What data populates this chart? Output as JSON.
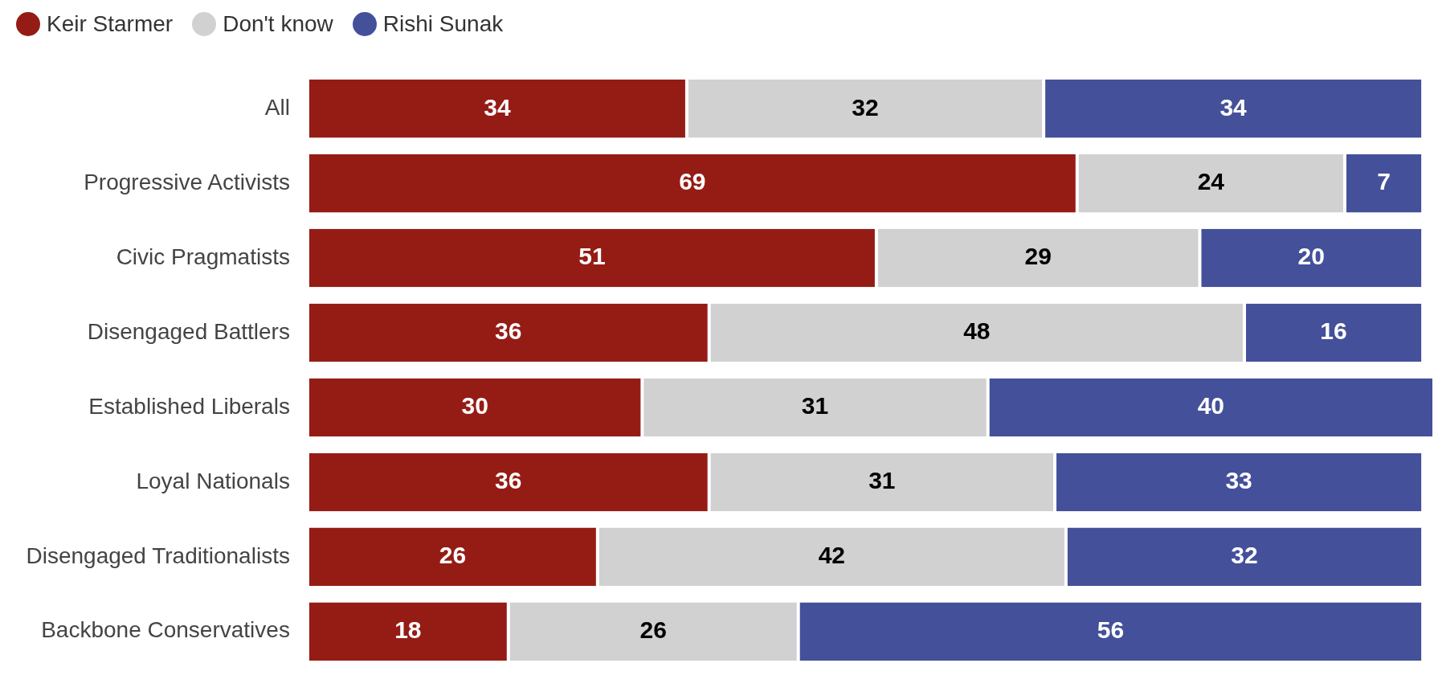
{
  "chart_data": {
    "type": "bar",
    "orientation": "horizontal",
    "stacked": true,
    "legend": "top left",
    "data_labels": true,
    "grid": false,
    "tick_labels": "y",
    "xlim": [
      0,
      101
    ],
    "categories": [
      "All",
      "Progressive Activists",
      "Civic Pragmatists",
      "Disengaged Battlers",
      "Established Liberals",
      "Loyal Nationals",
      "Disengaged Traditionalists",
      "Backbone Conservatives"
    ],
    "series": [
      {
        "name": "Keir Starmer",
        "color": "#951c15",
        "values": [
          34,
          69,
          51,
          36,
          30,
          36,
          26,
          18
        ]
      },
      {
        "name": "Don't know",
        "color": "#d1d1d1",
        "values": [
          32,
          24,
          29,
          48,
          31,
          31,
          42,
          26
        ]
      },
      {
        "name": "Rishi Sunak",
        "color": "#44509a",
        "values": [
          34,
          7,
          20,
          16,
          40,
          33,
          32,
          56
        ]
      }
    ]
  }
}
